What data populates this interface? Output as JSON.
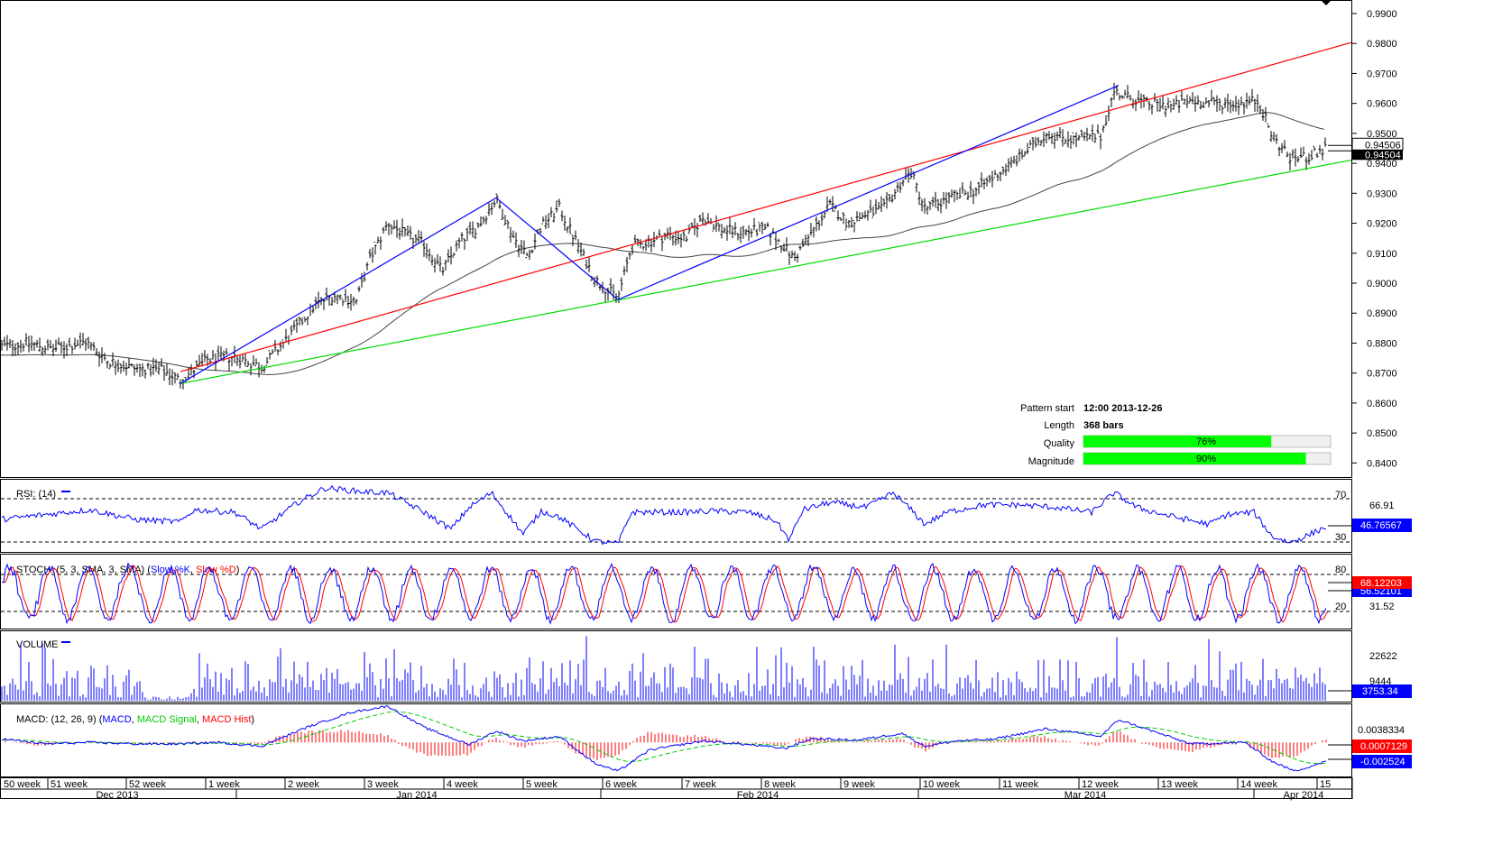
{
  "chart_data": [
    {
      "type": "candlestick",
      "panel": "price",
      "ylim": [
        0.835,
        0.993
      ],
      "y_ticks": [
        "0.9900",
        "0.9800",
        "0.9700",
        "0.9600",
        "0.9500",
        "0.9400",
        "0.9300",
        "0.9200",
        "0.9100",
        "0.9000",
        "0.8900",
        "0.8800",
        "0.8700",
        "0.8600",
        "0.8500",
        "0.8400"
      ],
      "last_price_labels": [
        "0.94506",
        "0.94504"
      ],
      "close_path_anchors": [
        [
          0,
          0.879
        ],
        [
          30,
          0.88
        ],
        [
          60,
          0.878
        ],
        [
          95,
          0.8805
        ],
        [
          120,
          0.874
        ],
        [
          150,
          0.8715
        ],
        [
          180,
          0.871
        ],
        [
          200,
          0.8675
        ],
        [
          230,
          0.8745
        ],
        [
          260,
          0.8755
        ],
        [
          290,
          0.872
        ],
        [
          320,
          0.882
        ],
        [
          350,
          0.893
        ],
        [
          370,
          0.896
        ],
        [
          395,
          0.894
        ],
        [
          410,
          0.908
        ],
        [
          430,
          0.92
        ],
        [
          450,
          0.916
        ],
        [
          470,
          0.913
        ],
        [
          490,
          0.904
        ],
        [
          510,
          0.914
        ],
        [
          530,
          0.919
        ],
        [
          550,
          0.928
        ],
        [
          570,
          0.915
        ],
        [
          585,
          0.909
        ],
        [
          600,
          0.919
        ],
        [
          620,
          0.925
        ],
        [
          640,
          0.913
        ],
        [
          660,
          0.901
        ],
        [
          685,
          0.895
        ],
        [
          700,
          0.912
        ],
        [
          720,
          0.914
        ],
        [
          740,
          0.916
        ],
        [
          760,
          0.915
        ],
        [
          780,
          0.922
        ],
        [
          800,
          0.918
        ],
        [
          820,
          0.917
        ],
        [
          850,
          0.918
        ],
        [
          870,
          0.912
        ],
        [
          880,
          0.908
        ],
        [
          900,
          0.917
        ],
        [
          920,
          0.926
        ],
        [
          940,
          0.92
        ],
        [
          960,
          0.923
        ],
        [
          980,
          0.925
        ],
        [
          1000,
          0.934
        ],
        [
          1010,
          0.937
        ],
        [
          1025,
          0.925
        ],
        [
          1050,
          0.928
        ],
        [
          1080,
          0.931
        ],
        [
          1100,
          0.935
        ],
        [
          1130,
          0.942
        ],
        [
          1160,
          0.95
        ],
        [
          1190,
          0.948
        ],
        [
          1220,
          0.949
        ],
        [
          1235,
          0.964
        ],
        [
          1250,
          0.962
        ],
        [
          1270,
          0.96
        ],
        [
          1300,
          0.959
        ],
        [
          1320,
          0.961
        ],
        [
          1340,
          0.96
        ],
        [
          1370,
          0.96
        ],
        [
          1395,
          0.961
        ],
        [
          1410,
          0.949
        ],
        [
          1430,
          0.942
        ],
        [
          1450,
          0.942
        ],
        [
          1470,
          0.945
        ]
      ],
      "pattern": {
        "resistance_line": {
          "color": "#ff0000",
          "start": [
            200,
            0.8705
          ],
          "end": [
            1500,
            0.9805
          ]
        },
        "support_line": {
          "color": "#00dd00",
          "start": [
            200,
            0.8665
          ],
          "end": [
            1500,
            0.9412
          ]
        },
        "zigzag": {
          "color": "#0000ff",
          "points": [
            [
              200,
              0.8665
            ],
            [
              550,
              0.9285
            ],
            [
              685,
              0.8945
            ],
            [
              1240,
              0.966
            ]
          ]
        },
        "moving_average_color": "#444444"
      },
      "info": {
        "pattern_start_label": "Pattern start",
        "pattern_start_value": "12:00 2013-12-26",
        "length_label": "Length",
        "length_value": "368 bars",
        "quality_label": "Quality",
        "quality_value": 76,
        "quality_text": "76%",
        "magnitude_label": "Magnitude",
        "magnitude_value": 90,
        "magnitude_text": "90%",
        "bar_color": "#00ff00"
      }
    },
    {
      "type": "line",
      "panel": "rsi",
      "title": "RSI: (14)",
      "ylim": [
        22,
        80
      ],
      "levels": [
        "70",
        "30"
      ],
      "y_labels": [
        "66.91"
      ],
      "last_value": "46.76567",
      "series": [
        {
          "color": "#0000ff",
          "anchors": [
            [
              0,
              48
            ],
            [
              50,
              52
            ],
            [
              100,
              56
            ],
            [
              150,
              48
            ],
            [
              200,
              46
            ],
            [
              215,
              56
            ],
            [
              260,
              54
            ],
            [
              290,
              40
            ],
            [
              330,
              62
            ],
            [
              360,
              74
            ],
            [
              400,
              71
            ],
            [
              430,
              70
            ],
            [
              470,
              54
            ],
            [
              500,
              40
            ],
            [
              520,
              58
            ],
            [
              545,
              70
            ],
            [
              580,
              36
            ],
            [
              600,
              55
            ],
            [
              620,
              50
            ],
            [
              660,
              30
            ],
            [
              685,
              28
            ],
            [
              700,
              54
            ],
            [
              760,
              54
            ],
            [
              790,
              55
            ],
            [
              830,
              54
            ],
            [
              860,
              47
            ],
            [
              875,
              31
            ],
            [
              890,
              56
            ],
            [
              920,
              62
            ],
            [
              960,
              58
            ],
            [
              990,
              70
            ],
            [
              1010,
              56
            ],
            [
              1025,
              44
            ],
            [
              1050,
              54
            ],
            [
              1090,
              60
            ],
            [
              1130,
              60
            ],
            [
              1170,
              58
            ],
            [
              1210,
              54
            ],
            [
              1235,
              70
            ],
            [
              1260,
              58
            ],
            [
              1290,
              52
            ],
            [
              1340,
              44
            ],
            [
              1360,
              52
            ],
            [
              1390,
              54
            ],
            [
              1410,
              34
            ],
            [
              1430,
              29
            ],
            [
              1450,
              35
            ],
            [
              1470,
              42
            ]
          ]
        }
      ]
    },
    {
      "type": "line",
      "panel": "stochastic",
      "title_parts": [
        "STOCH: (5, 3, SMA, 3, SMA) (",
        "Slow %K",
        ", ",
        "Slow %D",
        ")"
      ],
      "ylim": [
        0,
        100
      ],
      "levels": [
        "80",
        "20"
      ],
      "y_labels": [
        "31.52"
      ],
      "last_values": [
        "68.12203",
        "56.52101"
      ],
      "series": [
        {
          "name": "Slow %K",
          "color": "#0000ff",
          "last": 56.52
        },
        {
          "name": "Slow %D",
          "color": "#ff0000",
          "last": 68.12
        }
      ]
    },
    {
      "type": "bar",
      "panel": "volume",
      "title": "VOLUME",
      "ylim": [
        0,
        30000
      ],
      "y_labels": [
        "22622",
        "9444"
      ],
      "last_value": "3753.34",
      "series": [
        {
          "color": "#0000ff"
        }
      ]
    },
    {
      "type": "line",
      "panel": "macd",
      "title_parts": [
        "MACD: (12, 26, 9) (",
        "MACD",
        ", ",
        "MACD Signal",
        ", ",
        "MACD Hist",
        ")"
      ],
      "ylim": [
        -0.0045,
        0.0048
      ],
      "y_labels": [
        "0.0038334"
      ],
      "last_values": [
        "0.0007129",
        "-0.002524"
      ],
      "series": [
        {
          "name": "MACD",
          "color": "#0000ff",
          "anchors": [
            [
              0,
              0.0005
            ],
            [
              50,
              -0.0002
            ],
            [
              100,
              0.0
            ],
            [
              150,
              -0.0002
            ],
            [
              200,
              -0.0002
            ],
            [
              240,
              0.0
            ],
            [
              290,
              -0.0005
            ],
            [
              340,
              0.002
            ],
            [
              390,
              0.004
            ],
            [
              430,
              0.0048
            ],
            [
              470,
              0.002
            ],
            [
              520,
              -0.0003
            ],
            [
              550,
              0.0015
            ],
            [
              580,
              0.0002
            ],
            [
              620,
              0.0008
            ],
            [
              660,
              -0.0028
            ],
            [
              685,
              -0.0038
            ],
            [
              720,
              -0.001
            ],
            [
              780,
              0.0002
            ],
            [
              830,
              -0.0003
            ],
            [
              870,
              -0.0008
            ],
            [
              900,
              0.0005
            ],
            [
              950,
              0.0003
            ],
            [
              1000,
              0.0012
            ],
            [
              1025,
              -0.0005
            ],
            [
              1060,
              0.0002
            ],
            [
              1100,
              0.0004
            ],
            [
              1160,
              0.0018
            ],
            [
              1220,
              0.0008
            ],
            [
              1240,
              0.003
            ],
            [
              1270,
              0.0018
            ],
            [
              1320,
              -0.0002
            ],
            [
              1380,
              0.0
            ],
            [
              1410,
              -0.0025
            ],
            [
              1435,
              -0.0038
            ],
            [
              1470,
              -0.0025
            ]
          ]
        },
        {
          "name": "MACD Signal",
          "color": "#00cc00"
        },
        {
          "name": "MACD Hist",
          "color": "#ff0000"
        }
      ]
    }
  ],
  "x_axis": {
    "week_labels": [
      "50 week",
      "51 week",
      "52 week",
      "1 week",
      "2 week",
      "3 week",
      "4 week",
      "5 week",
      "6 week",
      "7 week",
      "8 week",
      "9 week",
      "10 week",
      "11 week",
      "12 week",
      "13 week",
      "14 week",
      "15"
    ],
    "month_labels": [
      "Dec 2013",
      "Jan 2014",
      "Feb 2014",
      "Mar 2014",
      "Apr 2014"
    ]
  },
  "colors": {
    "frame": "#000000",
    "dashed_level": "#000000",
    "last_value_dark": "#000000",
    "last_value_blue": "#0000ff",
    "last_value_red": "#ff0000"
  }
}
